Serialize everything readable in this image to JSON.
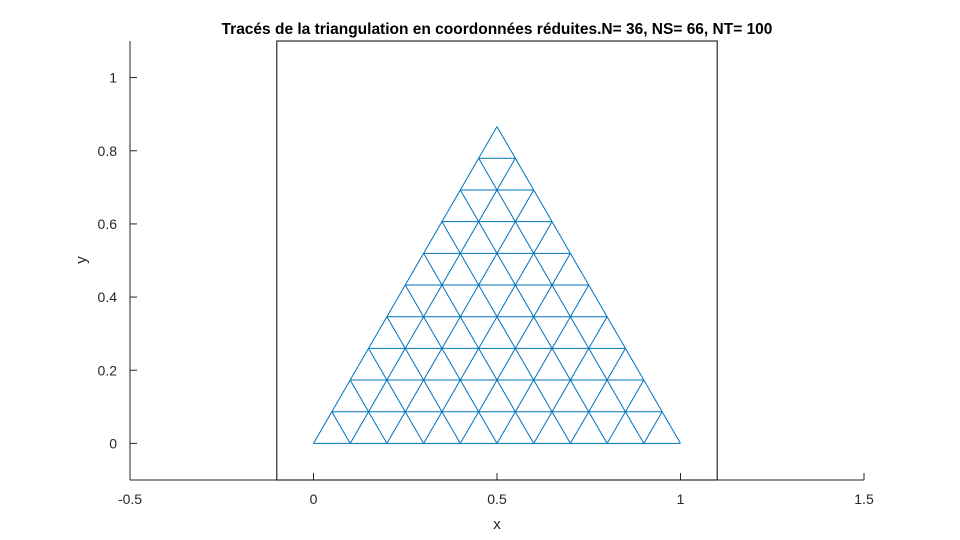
{
  "chart_data": {
    "type": "line",
    "title": "Tracés de la triangulation en coordonnées réduites.N= 36,  NS= 66,   NT= 100",
    "xlabel": "x",
    "ylabel": "y",
    "xlim": [
      -0.5,
      1.5
    ],
    "ylim": [
      -0.1,
      1.1
    ],
    "xticks": [
      -0.5,
      0,
      0.5,
      1,
      1.5
    ],
    "xtick_labels": [
      "-0.5",
      "0",
      "0.5",
      "1",
      "1.5"
    ],
    "yticks": [
      0,
      0.2,
      0.4,
      0.6,
      0.8,
      1
    ],
    "ytick_labels": [
      "0",
      "0.2",
      "0.4",
      "0.6",
      "0.8",
      "1"
    ],
    "grid": false,
    "box": {
      "x": [
        -0.1,
        1.1
      ],
      "y": [
        -0.1,
        1.1
      ]
    },
    "triangulation": {
      "vertices": [
        [
          0,
          0
        ],
        [
          1,
          0
        ],
        [
          0.5,
          0.866
        ]
      ],
      "subdivisions": 10,
      "color": "#0072BD"
    }
  }
}
